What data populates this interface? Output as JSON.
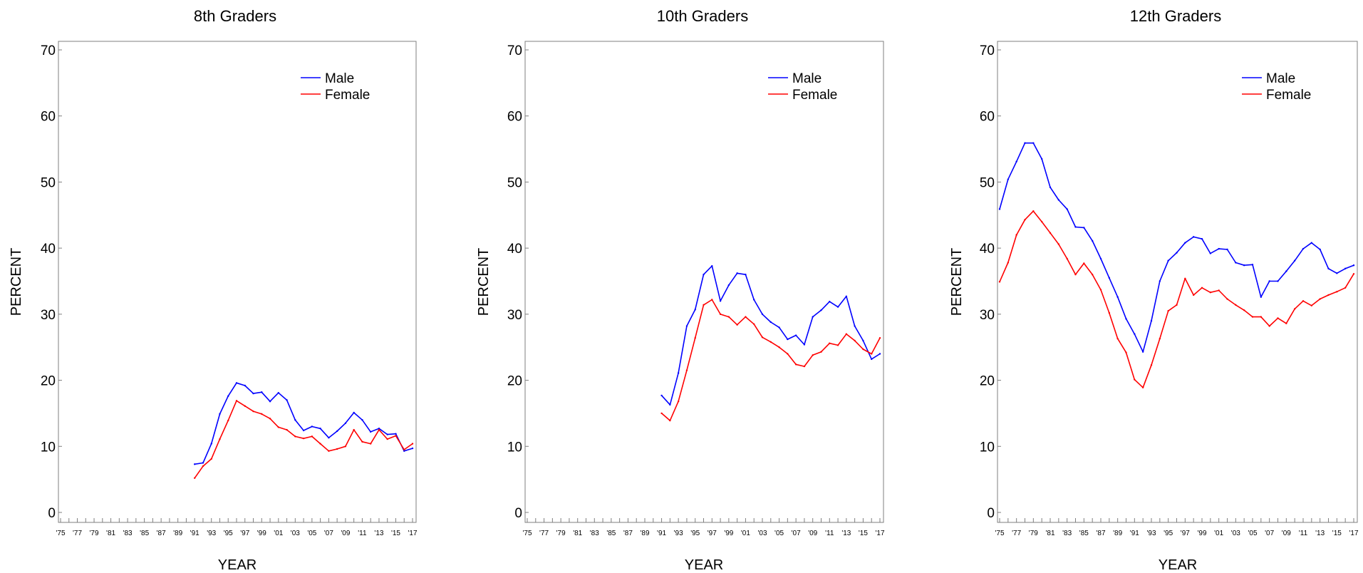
{
  "chart_data": [
    {
      "type": "line",
      "title": "8th Graders",
      "xlabel": "YEAR",
      "ylabel": "PERCENT",
      "ylim": [
        0,
        70
      ],
      "yticks": [
        0,
        10,
        20,
        30,
        40,
        50,
        60,
        70
      ],
      "xlim": [
        1975,
        2017
      ],
      "xtick_labels": [
        "'75",
        "'77",
        "'79",
        "'81",
        "'83",
        "'85",
        "'87",
        "'89",
        "'91",
        "'93",
        "'95",
        "'97",
        "'99",
        "'01",
        "'03",
        "'05",
        "'07",
        "'09",
        "'11",
        "'13",
        "'15",
        "'17"
      ],
      "grid": false,
      "legend": "top-right",
      "series": [
        {
          "name": "Male",
          "color": "#0000ff",
          "x": [
            1991,
            1992,
            1993,
            1994,
            1995,
            1996,
            1997,
            1998,
            1999,
            2000,
            2001,
            2002,
            2003,
            2004,
            2005,
            2006,
            2007,
            2008,
            2009,
            2010,
            2011,
            2012,
            2013,
            2014,
            2015,
            2016,
            2017
          ],
          "values": [
            7.3,
            7.5,
            10.4,
            14.9,
            17.6,
            19.6,
            19.2,
            18.0,
            18.2,
            16.8,
            18.1,
            17.0,
            14.0,
            12.4,
            13.0,
            12.7,
            11.3,
            12.3,
            13.5,
            15.1,
            14.0,
            12.2,
            12.7,
            11.8,
            11.9,
            9.3,
            9.7
          ]
        },
        {
          "name": "Female",
          "color": "#ff0000",
          "x": [
            1991,
            1992,
            1993,
            1994,
            1995,
            1996,
            1997,
            1998,
            1999,
            2000,
            2001,
            2002,
            2003,
            2004,
            2005,
            2006,
            2007,
            2008,
            2009,
            2010,
            2011,
            2012,
            2013,
            2014,
            2015,
            2016,
            2017
          ],
          "values": [
            5.2,
            7.0,
            8.1,
            11.1,
            13.9,
            16.9,
            16.1,
            15.3,
            14.9,
            14.2,
            12.9,
            12.5,
            11.5,
            11.2,
            11.5,
            10.4,
            9.3,
            9.6,
            10.0,
            12.5,
            10.7,
            10.4,
            12.5,
            11.1,
            11.6,
            9.5,
            10.4
          ]
        }
      ]
    },
    {
      "type": "line",
      "title": "10th Graders",
      "xlabel": "YEAR",
      "ylabel": "PERCENT",
      "ylim": [
        0,
        70
      ],
      "yticks": [
        0,
        10,
        20,
        30,
        40,
        50,
        60,
        70
      ],
      "xlim": [
        1975,
        2017
      ],
      "xtick_labels": [
        "'75",
        "'77",
        "'79",
        "'81",
        "'83",
        "'85",
        "'87",
        "'89",
        "'91",
        "'93",
        "'95",
        "'97",
        "'99",
        "'01",
        "'03",
        "'05",
        "'07",
        "'09",
        "'11",
        "'13",
        "'15",
        "'17"
      ],
      "grid": false,
      "legend": "top-right",
      "series": [
        {
          "name": "Male",
          "color": "#0000ff",
          "x": [
            1991,
            1992,
            1993,
            1994,
            1995,
            1996,
            1997,
            1998,
            1999,
            2000,
            2001,
            2002,
            2003,
            2004,
            2005,
            2006,
            2007,
            2008,
            2009,
            2010,
            2011,
            2012,
            2013,
            2014,
            2015,
            2016,
            2017
          ],
          "values": [
            17.7,
            16.3,
            21.1,
            28.2,
            30.7,
            36.0,
            37.3,
            32.0,
            34.4,
            36.2,
            36.0,
            32.2,
            30.0,
            28.8,
            28.0,
            26.2,
            26.8,
            25.4,
            29.6,
            30.6,
            31.9,
            31.1,
            32.7,
            28.2,
            26.0,
            23.2,
            24.0
          ]
        },
        {
          "name": "Female",
          "color": "#ff0000",
          "x": [
            1991,
            1992,
            1993,
            1994,
            1995,
            1996,
            1997,
            1998,
            1999,
            2000,
            2001,
            2002,
            2003,
            2004,
            2005,
            2006,
            2007,
            2008,
            2009,
            2010,
            2011,
            2012,
            2013,
            2014,
            2015,
            2016,
            2017
          ],
          "values": [
            15.0,
            13.9,
            16.8,
            21.5,
            26.4,
            31.4,
            32.2,
            30.0,
            29.6,
            28.4,
            29.6,
            28.5,
            26.5,
            25.8,
            25.0,
            24.0,
            22.4,
            22.1,
            23.8,
            24.3,
            25.6,
            25.3,
            27.0,
            26.0,
            24.7,
            24.0,
            26.4
          ]
        }
      ]
    },
    {
      "type": "line",
      "title": "12th Graders",
      "xlabel": "YEAR",
      "ylabel": "PERCENT",
      "ylim": [
        0,
        70
      ],
      "yticks": [
        0,
        10,
        20,
        30,
        40,
        50,
        60,
        70
      ],
      "xlim": [
        1975,
        2017
      ],
      "xtick_labels": [
        "'75",
        "'77",
        "'79",
        "'81",
        "'83",
        "'85",
        "'87",
        "'89",
        "'91",
        "'93",
        "'95",
        "'97",
        "'99",
        "'01",
        "'03",
        "'05",
        "'07",
        "'09",
        "'11",
        "'13",
        "'15",
        "'17"
      ],
      "grid": false,
      "legend": "top-right",
      "series": [
        {
          "name": "Male",
          "color": "#0000ff",
          "x": [
            1975,
            1976,
            1977,
            1978,
            1979,
            1980,
            1981,
            1982,
            1983,
            1984,
            1985,
            1986,
            1987,
            1988,
            1989,
            1990,
            1991,
            1992,
            1993,
            1994,
            1995,
            1996,
            1997,
            1998,
            1999,
            2000,
            2001,
            2002,
            2003,
            2004,
            2005,
            2006,
            2007,
            2008,
            2009,
            2010,
            2011,
            2012,
            2013,
            2014,
            2015,
            2016,
            2017
          ],
          "values": [
            45.9,
            50.4,
            53.1,
            55.9,
            55.9,
            53.5,
            49.2,
            47.3,
            45.9,
            43.2,
            43.1,
            41.1,
            38.4,
            35.5,
            32.6,
            29.3,
            27.0,
            24.3,
            29.0,
            35.0,
            38.1,
            39.3,
            40.8,
            41.7,
            41.4,
            39.2,
            39.9,
            39.8,
            37.8,
            37.4,
            37.5,
            32.6,
            35.0,
            35.0,
            36.5,
            38.1,
            39.9,
            40.8,
            39.8,
            36.9,
            36.2,
            36.9,
            37.4
          ]
        },
        {
          "name": "Female",
          "color": "#ff0000",
          "x": [
            1975,
            1976,
            1977,
            1978,
            1979,
            1980,
            1981,
            1982,
            1983,
            1984,
            1985,
            1986,
            1987,
            1988,
            1989,
            1990,
            1991,
            1992,
            1993,
            1994,
            1995,
            1996,
            1997,
            1998,
            1999,
            2000,
            2001,
            2002,
            2003,
            2004,
            2005,
            2006,
            2007,
            2008,
            2009,
            2010,
            2011,
            2012,
            2013,
            2014,
            2015,
            2016,
            2017
          ],
          "values": [
            34.9,
            37.8,
            42.0,
            44.3,
            45.6,
            44.0,
            42.3,
            40.6,
            38.4,
            36.0,
            37.7,
            36.0,
            33.7,
            30.2,
            26.3,
            24.2,
            20.1,
            18.9,
            22.3,
            26.3,
            30.5,
            31.4,
            35.4,
            32.9,
            34.0,
            33.3,
            33.6,
            32.3,
            31.4,
            30.6,
            29.6,
            29.6,
            28.2,
            29.4,
            28.6,
            30.8,
            32.0,
            31.3,
            32.3,
            32.9,
            33.4,
            34.0,
            36.1
          ]
        }
      ]
    }
  ]
}
